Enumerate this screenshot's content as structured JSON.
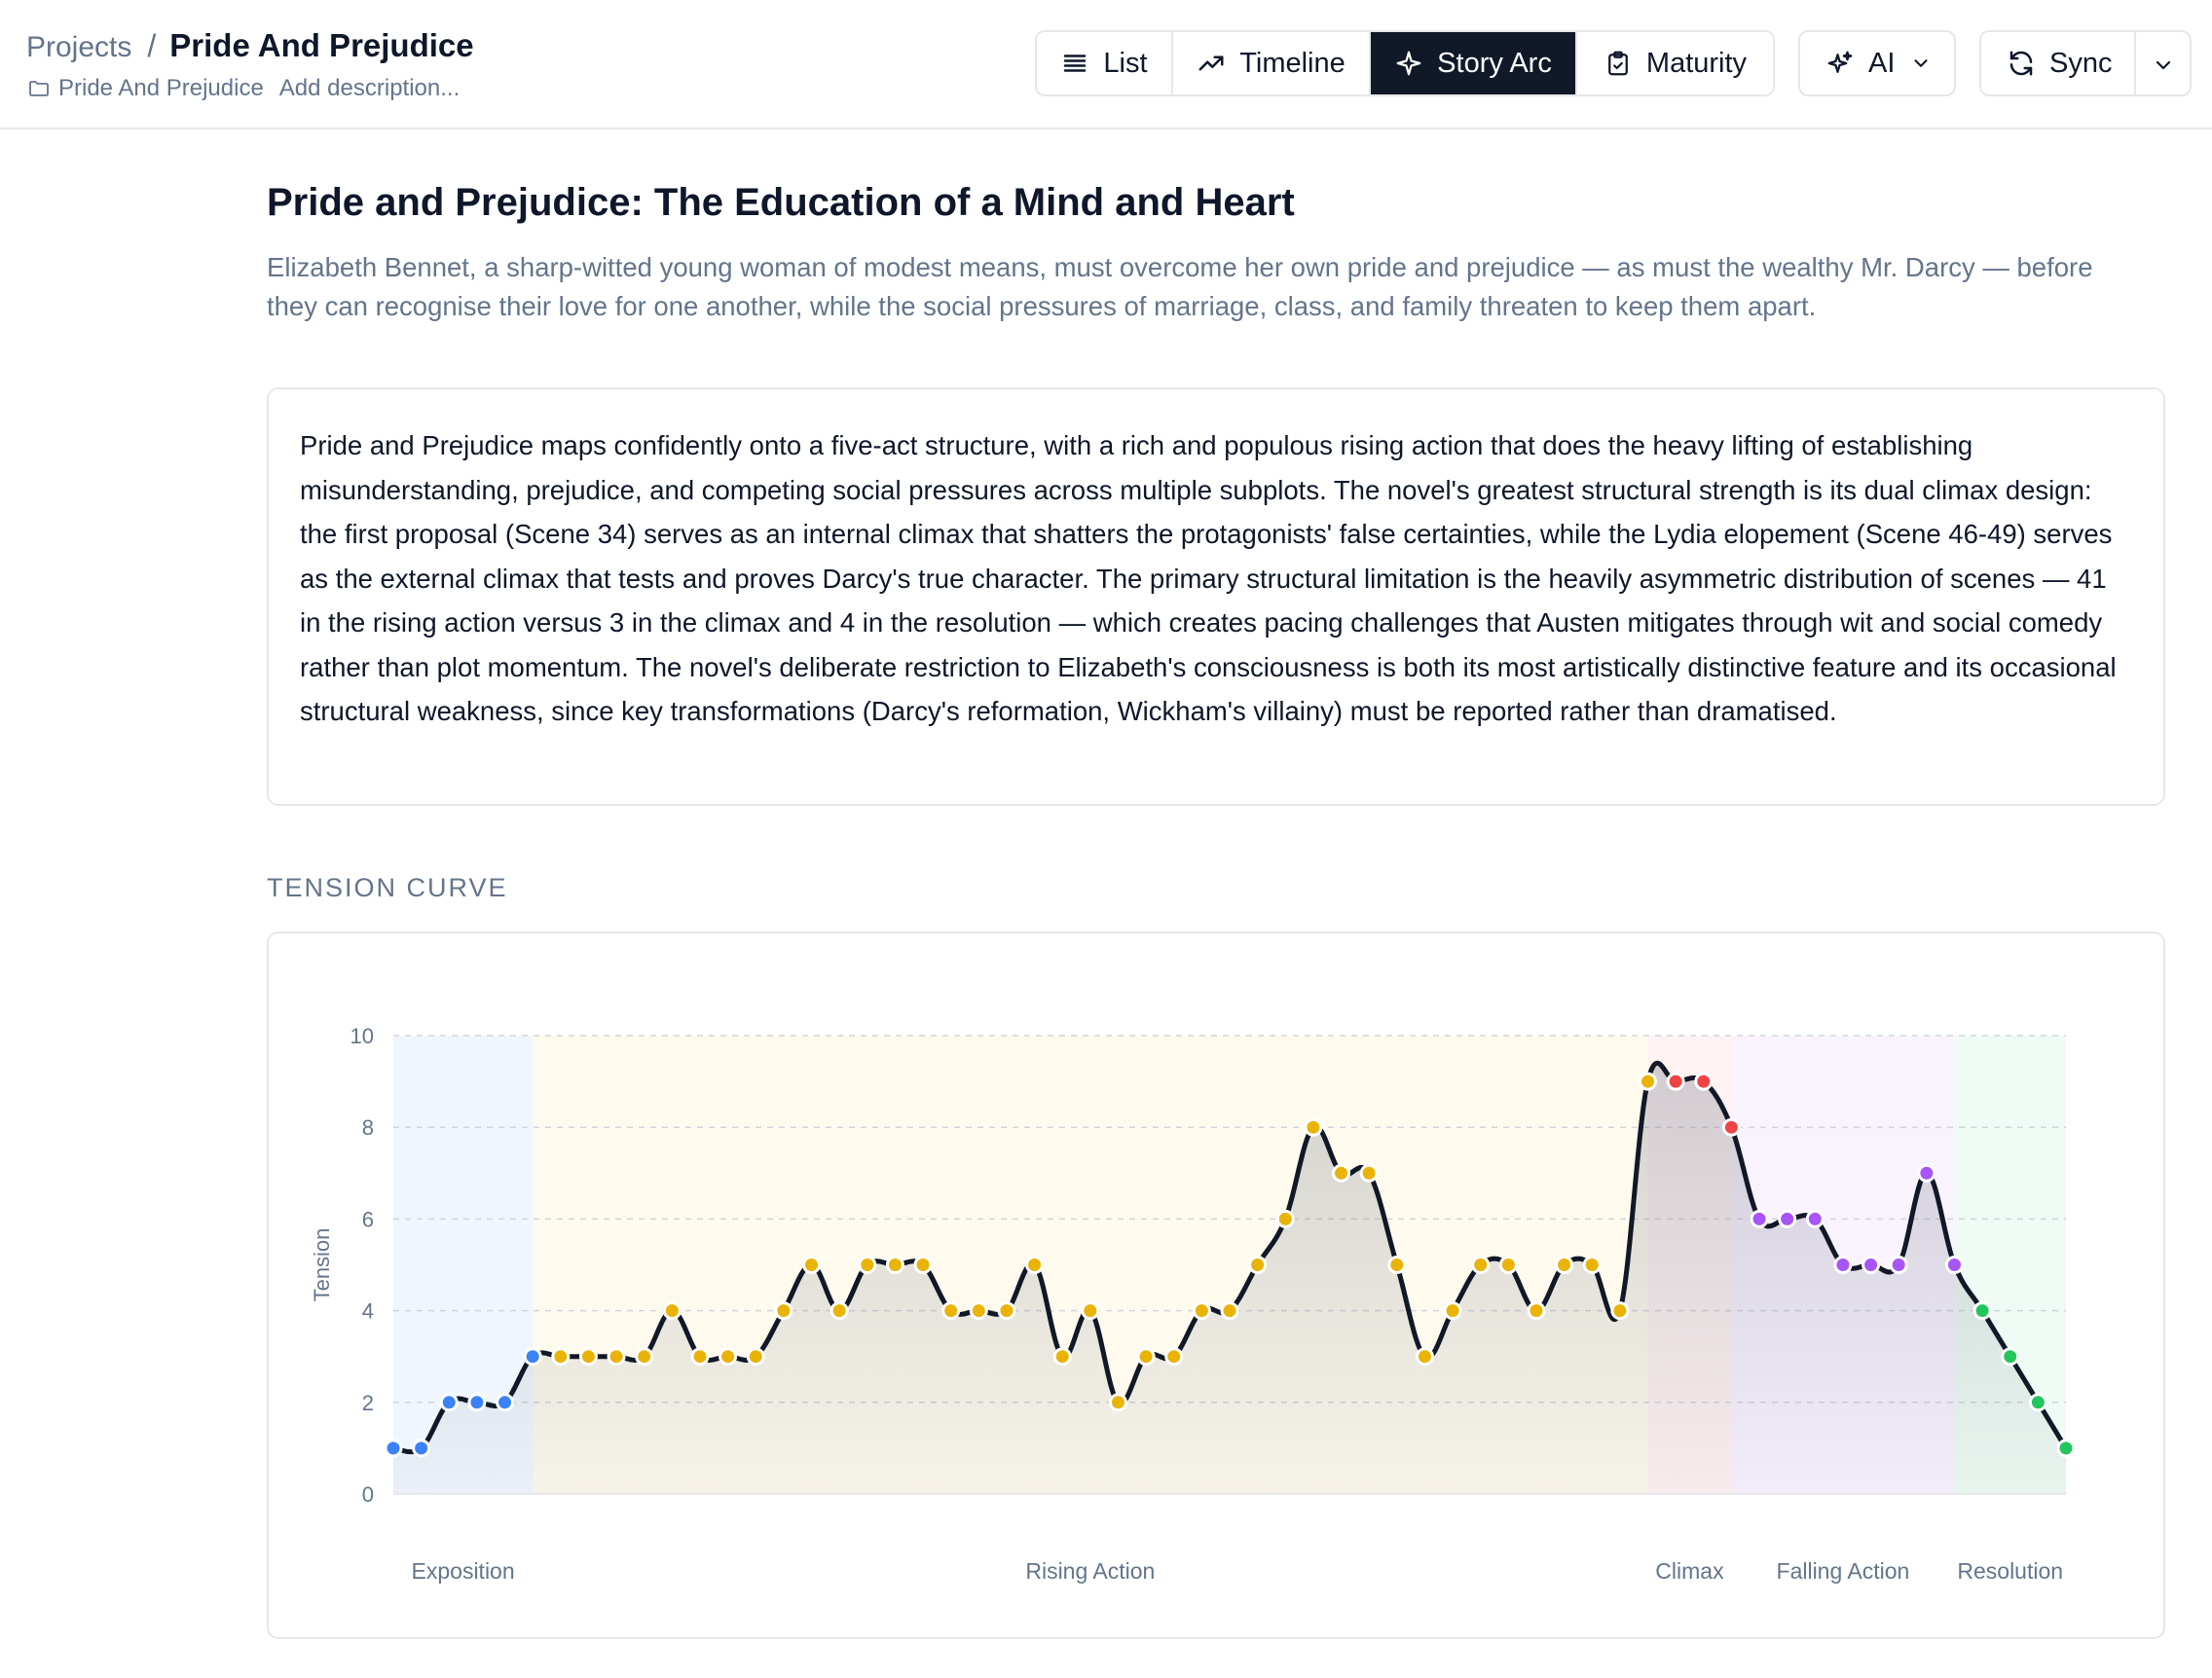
{
  "header": {
    "breadcrumb_root": "Projects",
    "breadcrumb_separator": "/",
    "project_title": "Pride And Prejudice",
    "folder_label": "Pride And Prejudice",
    "description_placeholder": "Add description..."
  },
  "view_tabs": {
    "list": "List",
    "timeline": "Timeline",
    "story_arc": "Story Arc",
    "maturity": "Maturity",
    "active": "story_arc"
  },
  "actions": {
    "ai": "AI",
    "sync": "Sync"
  },
  "main": {
    "title": "Pride and Prejudice: The Education of a Mind and Heart",
    "subtitle": "Elizabeth Bennet, a sharp-witted young woman of modest means, must overcome her own pride and prejudice — as must the wealthy Mr. Darcy — before they can recognise their love for one another, while the social pressures of marriage, class, and family threaten to keep them apart.",
    "summary": "Pride and Prejudice maps confidently onto a five-act structure, with a rich and populous rising action that does the heavy lifting of establishing misunderstanding, prejudice, and competing social pressures across multiple subplots. The novel's greatest structural strength is its dual climax design: the first proposal (Scene 34) serves as an internal climax that shatters the protagonists' false certainties, while the Lydia elopement (Scene 46-49) serves as the external climax that tests and proves Darcy's true character. The primary structural limitation is the heavily asymmetric distribution of scenes — 41 in the rising action versus 3 in the climax and 4 in the resolution — which creates pacing challenges that Austen mitigates through wit and social comedy rather than plot momentum. The novel's deliberate restriction to Elizabeth's consciousness is both its most artistically distinctive feature and its occasional structural weakness, since key transformations (Darcy's reformation, Wickham's villainy) must be reported rather than dramatised.",
    "section_label": "TENSION CURVE"
  },
  "chart_data": {
    "type": "line",
    "ylabel": "Tension",
    "ylim": [
      0,
      10
    ],
    "yticks": [
      0,
      2,
      4,
      6,
      8,
      10
    ],
    "grid": true,
    "x": [
      1,
      2,
      3,
      4,
      5,
      6,
      7,
      8,
      9,
      10,
      11,
      12,
      13,
      14,
      15,
      16,
      17,
      18,
      19,
      20,
      21,
      22,
      23,
      24,
      25,
      26,
      27,
      28,
      29,
      30,
      31,
      32,
      33,
      34,
      35,
      36,
      37,
      38,
      39,
      40,
      41,
      42,
      43,
      44,
      45,
      46,
      47,
      48,
      49,
      50,
      51,
      52,
      53,
      54,
      55,
      56,
      57,
      58,
      59,
      60,
      61
    ],
    "values": [
      1,
      1,
      2,
      2,
      2,
      3,
      3,
      3,
      3,
      3,
      4,
      3,
      3,
      3,
      4,
      5,
      4,
      5,
      5,
      5,
      4,
      4,
      4,
      5,
      3,
      4,
      2,
      3,
      3,
      4,
      4,
      5,
      6,
      8,
      7,
      7,
      5,
      3,
      4,
      5,
      5,
      4,
      5,
      5,
      4,
      9,
      9,
      9,
      8,
      6,
      6,
      6,
      5,
      5,
      5,
      7,
      5,
      4,
      3,
      2,
      1
    ],
    "phases": [
      {
        "name": "Exposition",
        "start": 1,
        "end": 6,
        "color": "#3b82f6"
      },
      {
        "name": "Rising Action",
        "start": 6,
        "end": 46,
        "color": "#eab308"
      },
      {
        "name": "Climax",
        "start": 46,
        "end": 49,
        "color": "#ef4444"
      },
      {
        "name": "Falling Action",
        "start": 49,
        "end": 57,
        "color": "#a855f7"
      },
      {
        "name": "Resolution",
        "start": 57,
        "end": 61,
        "color": "#22c55e"
      }
    ],
    "point_colors": [
      "#3b82f6",
      "#3b82f6",
      "#3b82f6",
      "#3b82f6",
      "#3b82f6",
      "#3b82f6",
      "#eab308",
      "#eab308",
      "#eab308",
      "#eab308",
      "#eab308",
      "#eab308",
      "#eab308",
      "#eab308",
      "#eab308",
      "#eab308",
      "#eab308",
      "#eab308",
      "#eab308",
      "#eab308",
      "#eab308",
      "#eab308",
      "#eab308",
      "#eab308",
      "#eab308",
      "#eab308",
      "#eab308",
      "#eab308",
      "#eab308",
      "#eab308",
      "#eab308",
      "#eab308",
      "#eab308",
      "#eab308",
      "#eab308",
      "#eab308",
      "#eab308",
      "#eab308",
      "#eab308",
      "#eab308",
      "#eab308",
      "#eab308",
      "#eab308",
      "#eab308",
      "#eab308",
      "#eab308",
      "#ef4444",
      "#ef4444",
      "#ef4444",
      "#a855f7",
      "#a855f7",
      "#a855f7",
      "#a855f7",
      "#a855f7",
      "#a855f7",
      "#a855f7",
      "#a855f7",
      "#22c55e",
      "#22c55e",
      "#22c55e",
      "#22c55e"
    ],
    "line_color": "#111827"
  }
}
